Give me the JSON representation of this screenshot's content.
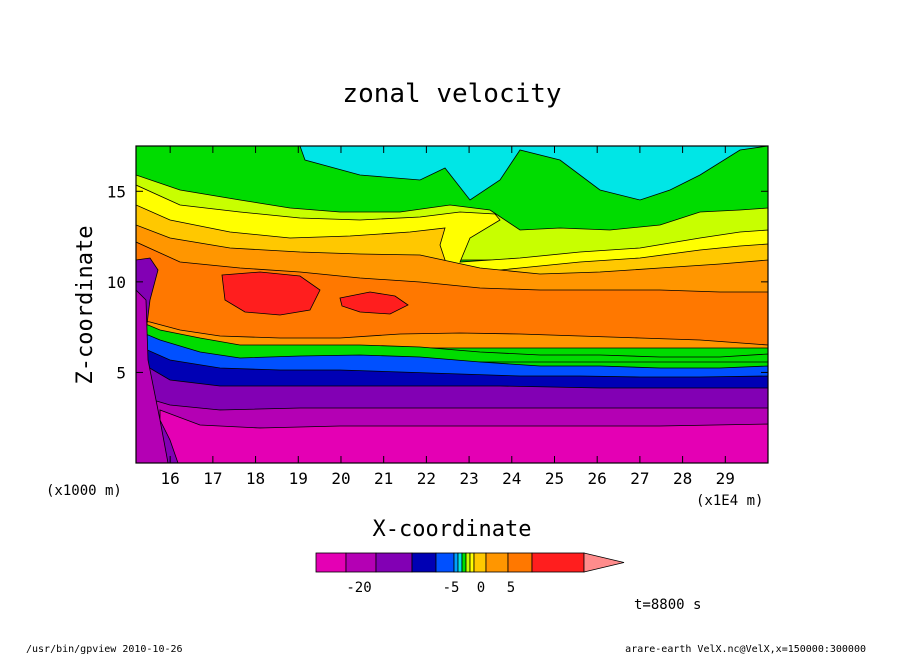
{
  "chart_data": {
    "type": "heatmap",
    "title": "zonal velocity",
    "xlabel": "X-coordinate",
    "ylabel": "Z-coordinate",
    "x_unit": "(x1E4 m)",
    "y_unit": "(x1000 m)",
    "xlim": [
      15.2,
      30.0
    ],
    "ylim": [
      0.0,
      17.5
    ],
    "xticks": [
      16,
      17,
      18,
      19,
      20,
      21,
      22,
      23,
      24,
      25,
      26,
      27,
      28,
      29
    ],
    "yticks": [
      5,
      10,
      15
    ],
    "time_label": "t=8800 s",
    "colorbar": {
      "ticks": [
        {
          "value": -20,
          "label": "-20"
        },
        {
          "value": -5,
          "label": "-5"
        },
        {
          "value": 0,
          "label": "0"
        },
        {
          "value": 5,
          "label": "5"
        }
      ],
      "colors": [
        "#e400b4",
        "#b400b4",
        "#8200b4",
        "#0000b4",
        "#0050ff",
        "#00a0ff",
        "#00e6e6",
        "#00dc00",
        "#c8ff00",
        "#ffff00",
        "#ffc800",
        "#ff9600",
        "#ff7800",
        "#ff1e1e",
        "#ff8c8c"
      ]
    },
    "level_colors": {
      "lt_-20": "#e400b4",
      "-20_-15": "#b400b4",
      "-15_-10": "#8200b4",
      "-10_-5": "#0000b4",
      "-5_-3": "#0050ff",
      "-3_-1": "#00a0ff",
      "-1_0": "#00e6e6",
      "0_1": "#00dc00",
      "1_2": "#c8ff00",
      "2_3": "#ffff00",
      "3_5": "#ffc800",
      "5_10": "#ff7800",
      "gt_10": "#ff1e1e"
    },
    "approx_vertical_profile": [
      {
        "z": 1.0,
        "u": -22
      },
      {
        "z": 2.5,
        "u": -17
      },
      {
        "z": 4.0,
        "u": -12
      },
      {
        "z": 5.0,
        "u": -7
      },
      {
        "z": 6.0,
        "u": 2
      },
      {
        "z": 8.0,
        "u": 8
      },
      {
        "z": 10.0,
        "u": 9
      },
      {
        "z": 12.0,
        "u": 3
      },
      {
        "z": 14.0,
        "u": 1
      },
      {
        "z": 16.5,
        "u": -1
      }
    ]
  },
  "footer": {
    "left": "/usr/bin/gpview   2010-10-26",
    "right": "arare-earth_VelX.nc@VelX,x=150000:300000"
  }
}
